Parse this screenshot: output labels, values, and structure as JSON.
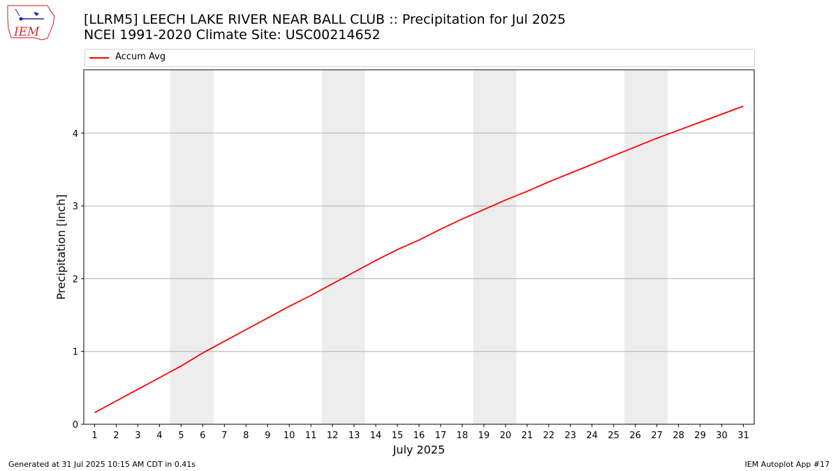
{
  "header": {
    "title_line1": "[LLRM5] LEECH LAKE RIVER NEAR BALL CLUB :: Precipitation for Jul 2025",
    "title_line2": "NCEI 1991-2020 Climate Site: USC00214652"
  },
  "logo": {
    "text": "IEM"
  },
  "footer": {
    "left": "Generated at 31 Jul 2025 10:15 AM CDT in 0.41s",
    "right": "IEM Autoplot App #17"
  },
  "colors": {
    "line": "#ff0000",
    "weekend": "#ededed",
    "grid": "#b0b0b0"
  },
  "chart_data": {
    "type": "line",
    "xlabel": "July 2025",
    "ylabel": "Precipitation [inch]",
    "xlim": [
      0.5,
      31.5
    ],
    "ylim": [
      0,
      4.87
    ],
    "yticks": [
      0,
      1,
      2,
      3,
      4
    ],
    "grid": "horizontal",
    "legend": "top",
    "shaded_days": [
      [
        5,
        6
      ],
      [
        12,
        13
      ],
      [
        19,
        20
      ],
      [
        26,
        27
      ]
    ],
    "categories": [
      "1",
      "2",
      "3",
      "4",
      "5",
      "6",
      "7",
      "8",
      "9",
      "10",
      "11",
      "12",
      "13",
      "14",
      "15",
      "16",
      "17",
      "18",
      "19",
      "20",
      "21",
      "22",
      "23",
      "24",
      "25",
      "26",
      "27",
      "28",
      "29",
      "30",
      "31"
    ],
    "series": [
      {
        "name": "Accum Avg",
        "color": "#ff0000",
        "values": [
          0.16,
          0.32,
          0.48,
          0.64,
          0.8,
          0.98,
          1.14,
          1.3,
          1.46,
          1.62,
          1.77,
          1.93,
          2.09,
          2.25,
          2.4,
          2.53,
          2.68,
          2.82,
          2.95,
          3.08,
          3.2,
          3.33,
          3.45,
          3.57,
          3.69,
          3.81,
          3.93,
          4.04,
          4.15,
          4.26,
          4.37
        ]
      }
    ]
  }
}
